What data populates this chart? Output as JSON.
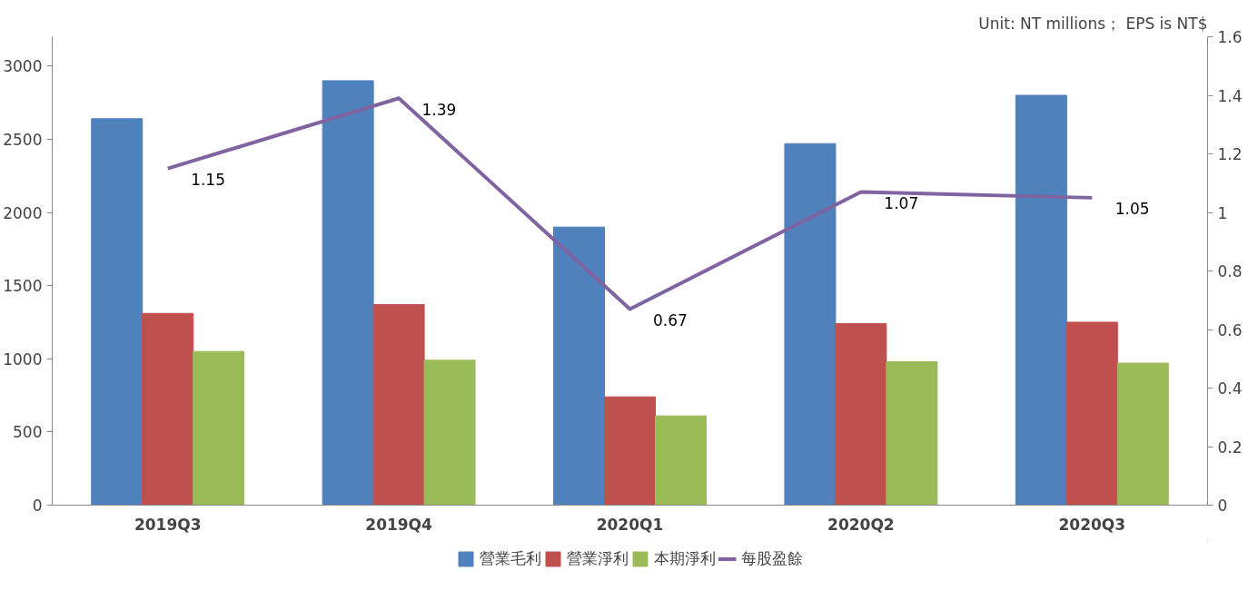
{
  "chart_data": {
    "type": "bar",
    "categories": [
      "2019Q3",
      "2019Q4",
      "2020Q1",
      "2020Q2",
      "2020Q3"
    ],
    "series": [
      {
        "name": "營業毛利",
        "color": "#4f81bd",
        "values": [
          2640,
          2900,
          1900,
          2470,
          2800
        ]
      },
      {
        "name": "營業淨利",
        "color": "#c0504d",
        "values": [
          1310,
          1370,
          740,
          1240,
          1250
        ]
      },
      {
        "name": "本期淨利",
        "color": "#9bbb59",
        "values": [
          1050,
          990,
          610,
          980,
          970
        ]
      },
      {
        "name": "每股盈餘",
        "color": "#8064a2",
        "type": "line",
        "axis": "y2",
        "values": [
          1.15,
          1.39,
          0.67,
          1.07,
          1.05
        ],
        "data_labels": true
      }
    ],
    "ylim": [
      0,
      3200
    ],
    "yticks": [
      0,
      500,
      1000,
      1500,
      2000,
      2500,
      3000
    ],
    "y2lim": [
      0,
      1.6
    ],
    "y2ticks": [
      0,
      0.2,
      0.4,
      0.6,
      0.8,
      1,
      1.2,
      1.4,
      1.6
    ],
    "annotations": [
      "Unit: NT millions； EPS is NT$"
    ],
    "legend": "bottom",
    "grid": false
  }
}
